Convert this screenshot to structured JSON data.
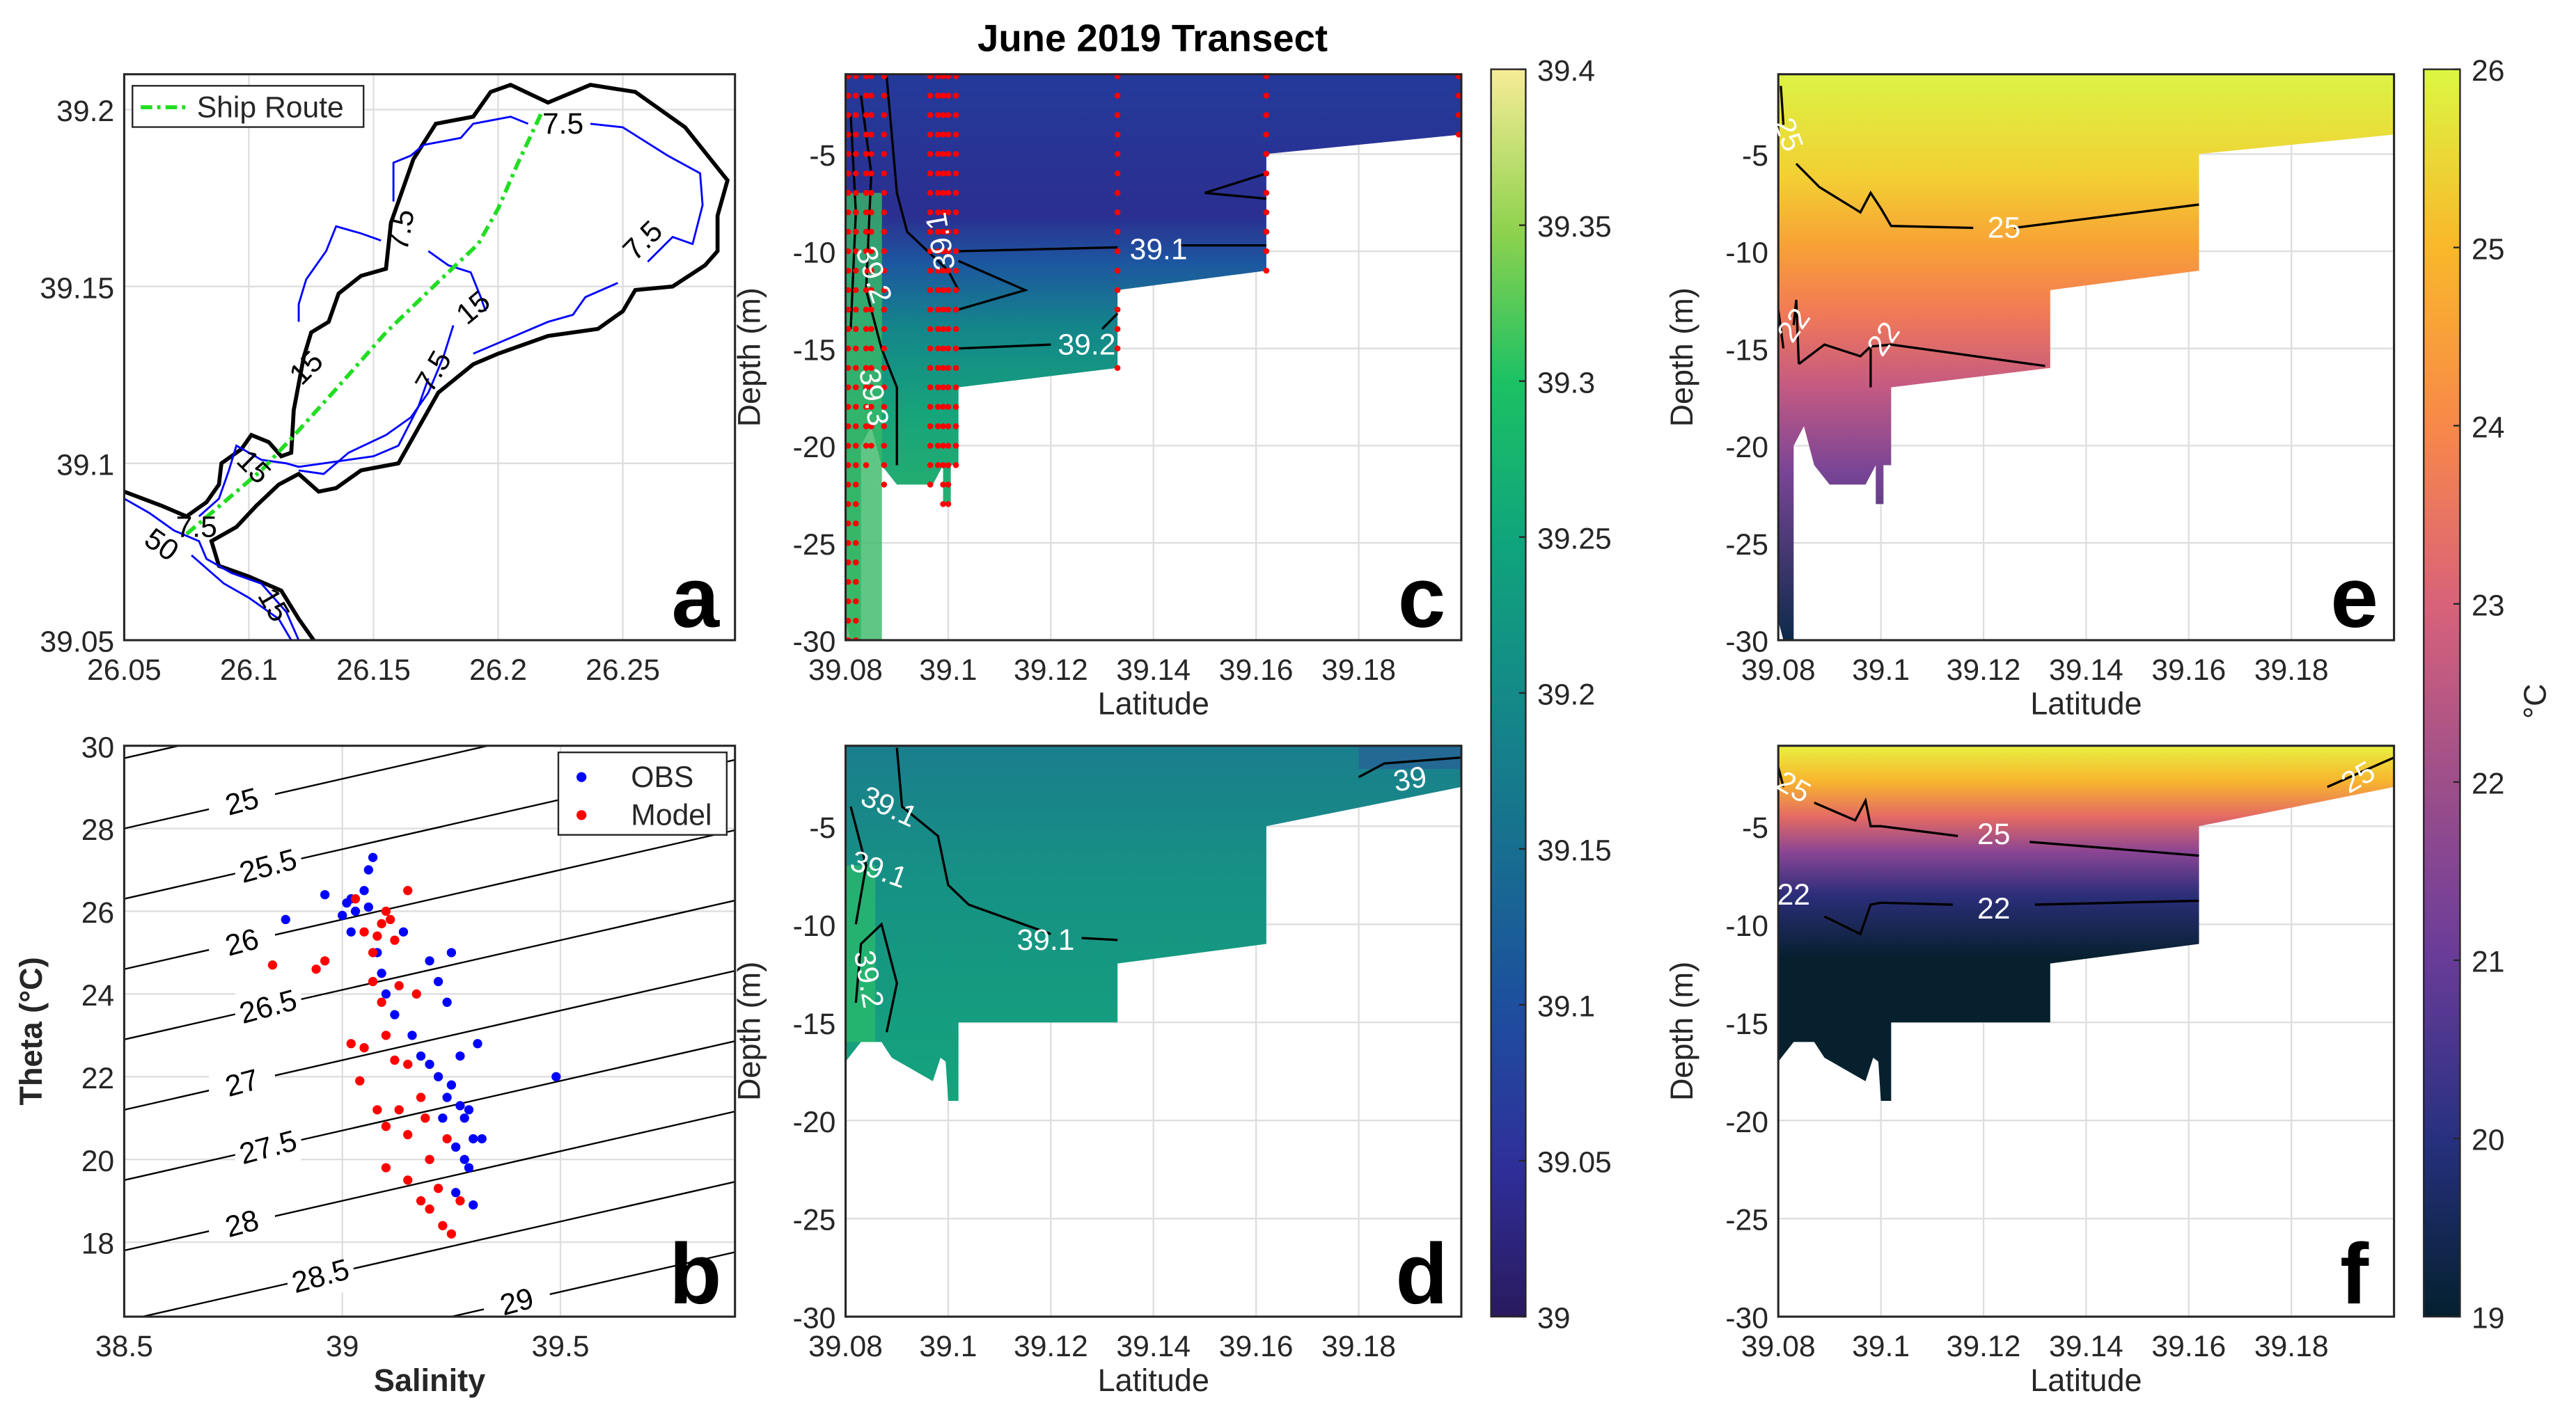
{
  "title": "June 2019 Transect",
  "colors": {
    "obs": "#0000ff",
    "model": "#ff0000",
    "route": "#22dd22",
    "stations": "#ff0000",
    "contour": "#000000",
    "isobath": "#0000ff"
  },
  "chart_data": [
    {
      "id": "a",
      "type": "map",
      "panel_label": "a",
      "xlim": [
        26.05,
        26.295
      ],
      "ylim": [
        39.05,
        39.21
      ],
      "xticks": [
        "26.05",
        "26.1",
        "26.15",
        "26.2",
        "26.25"
      ],
      "xtick_values": [
        26.05,
        26.1,
        26.15,
        26.2,
        26.25
      ],
      "yticks": [
        "39.05",
        "39.1",
        "39.15",
        "39.2"
      ],
      "ytick_values": [
        39.05,
        39.1,
        39.15,
        39.2
      ],
      "legend": [
        "Ship Route"
      ],
      "contour_labels": [
        {
          "text": "7.5",
          "at": [
            26.226,
            39.196
          ],
          "rot": 0
        },
        {
          "text": "7.5",
          "at": [
            26.161,
            39.166
          ],
          "rot": -80
        },
        {
          "text": "7.5",
          "at": [
            26.258,
            39.163
          ],
          "rot": -45
        },
        {
          "text": "15",
          "at": [
            26.19,
            39.144
          ],
          "rot": -40
        },
        {
          "text": "15",
          "at": [
            26.123,
            39.127
          ],
          "rot": -45
        },
        {
          "text": "7.5",
          "at": [
            26.174,
            39.126
          ],
          "rot": -60
        },
        {
          "text": "15",
          "at": [
            26.102,
            39.099
          ],
          "rot": 45
        },
        {
          "text": "50",
          "at": [
            26.065,
            39.077
          ],
          "rot": 35
        },
        {
          "text": "7.5",
          "at": [
            26.079,
            39.082
          ],
          "rot": 0
        },
        {
          "text": "15",
          "at": [
            26.11,
            39.06
          ],
          "rot": 60
        }
      ],
      "route": [
        [
          26.075,
          39.08
        ],
        [
          26.09,
          39.089
        ],
        [
          26.105,
          39.098
        ],
        [
          26.117,
          39.107
        ],
        [
          26.135,
          39.121
        ],
        [
          26.155,
          39.137
        ],
        [
          26.177,
          39.152
        ],
        [
          26.192,
          39.162
        ],
        [
          26.2,
          39.172
        ],
        [
          26.208,
          39.185
        ],
        [
          26.218,
          39.2
        ]
      ]
    },
    {
      "id": "b",
      "type": "scatter",
      "panel_label": "b",
      "xlabel": "Salinity",
      "ylabel": "Theta (°C)",
      "xlim": [
        38.5,
        39.9
      ],
      "ylim": [
        16.2,
        30
      ],
      "xticks": [
        "38.5",
        "39",
        "39.5"
      ],
      "xtick_values": [
        38.5,
        39,
        39.5
      ],
      "yticks": [
        "18",
        "20",
        "22",
        "24",
        "26",
        "28",
        "30"
      ],
      "ytick_values": [
        18,
        20,
        22,
        24,
        26,
        28,
        30
      ],
      "isopycnals": [
        24.5,
        25,
        25.5,
        26,
        26.5,
        27,
        27.5,
        28,
        28.5,
        29,
        29.5
      ],
      "isopycnal_labels": [
        "25",
        "25.5",
        "26",
        "26.5",
        "27",
        "27.5",
        "28",
        "28.5",
        "29"
      ],
      "legend": [
        "OBS",
        "Model"
      ],
      "series": [
        {
          "name": "OBS",
          "points": [
            [
              38.87,
              25.8
            ],
            [
              38.96,
              26.4
            ],
            [
              39.0,
              25.9
            ],
            [
              39.01,
              26.2
            ],
            [
              39.02,
              25.5
            ],
            [
              39.03,
              26.0
            ],
            [
              39.05,
              26.5
            ],
            [
              39.06,
              27.0
            ],
            [
              39.07,
              27.3
            ],
            [
              39.08,
              25.0
            ],
            [
              39.09,
              24.5
            ],
            [
              39.1,
              24.0
            ],
            [
              39.12,
              23.5
            ],
            [
              39.14,
              25.5
            ],
            [
              39.16,
              23.0
            ],
            [
              39.18,
              22.5
            ],
            [
              39.2,
              24.8
            ],
            [
              39.22,
              24.3
            ],
            [
              39.24,
              23.8
            ],
            [
              39.22,
              22.0
            ],
            [
              39.25,
              21.8
            ],
            [
              39.27,
              21.3
            ],
            [
              39.28,
              21.0
            ],
            [
              39.3,
              20.5
            ],
            [
              39.32,
              20.5
            ],
            [
              39.29,
              19.8
            ],
            [
              39.3,
              18.9
            ],
            [
              39.25,
              25.0
            ],
            [
              39.27,
              22.5
            ],
            [
              39.31,
              22.8
            ],
            [
              39.49,
              22.0
            ],
            [
              39.26,
              19.2
            ],
            [
              39.28,
              20.0
            ],
            [
              39.23,
              21.0
            ],
            [
              39.2,
              22.3
            ],
            [
              39.06,
              26.1
            ],
            [
              39.02,
              26.3
            ],
            [
              39.24,
              21.5
            ],
            [
              39.29,
              21.2
            ],
            [
              39.26,
              20.3
            ]
          ]
        },
        {
          "name": "Model",
          "points": [
            [
              38.84,
              24.7
            ],
            [
              38.94,
              24.6
            ],
            [
              38.96,
              24.8
            ],
            [
              39.03,
              26.3
            ],
            [
              39.05,
              25.5
            ],
            [
              39.07,
              25.0
            ],
            [
              39.09,
              25.7
            ],
            [
              39.1,
              26.0
            ],
            [
              39.12,
              25.3
            ],
            [
              39.15,
              26.5
            ],
            [
              39.07,
              24.3
            ],
            [
              39.09,
              23.8
            ],
            [
              39.02,
              22.8
            ],
            [
              39.05,
              22.7
            ],
            [
              39.04,
              21.9
            ],
            [
              39.1,
              23.0
            ],
            [
              39.12,
              22.4
            ],
            [
              39.15,
              22.3
            ],
            [
              39.18,
              21.5
            ],
            [
              39.13,
              21.2
            ],
            [
              39.08,
              21.2
            ],
            [
              39.1,
              20.8
            ],
            [
              39.15,
              20.6
            ],
            [
              39.19,
              21.0
            ],
            [
              39.1,
              19.8
            ],
            [
              39.15,
              19.5
            ],
            [
              39.18,
              19.0
            ],
            [
              39.2,
              18.8
            ],
            [
              39.22,
              19.3
            ],
            [
              39.23,
              18.4
            ],
            [
              39.25,
              18.2
            ],
            [
              39.24,
              20.5
            ],
            [
              39.2,
              20.0
            ],
            [
              39.27,
              19.0
            ],
            [
              39.13,
              24.2
            ],
            [
              39.17,
              24.0
            ],
            [
              39.08,
              25.4
            ],
            [
              39.11,
              25.8
            ]
          ]
        }
      ]
    },
    {
      "id": "c",
      "type": "heatmap",
      "panel_label": "c",
      "variable": "salinity",
      "source": "observations",
      "xlabel": "Latitude",
      "ylabel": "Depth (m)",
      "xlim": [
        39.08,
        39.2
      ],
      "ylim": [
        -30,
        -0.9
      ],
      "xticks": [
        "39.08",
        "39.1",
        "39.12",
        "39.14",
        "39.16",
        "39.18"
      ],
      "xtick_values": [
        39.08,
        39.1,
        39.12,
        39.14,
        39.16,
        39.18
      ],
      "yticks": [
        "-30",
        "-25",
        "-20",
        "-15",
        "-10",
        "-5"
      ],
      "ytick_values": [
        -30,
        -25,
        -20,
        -15,
        -10,
        -5
      ],
      "stations": [
        [
          39.0805,
          -30
        ],
        [
          39.082,
          -30
        ],
        [
          39.084,
          -21
        ],
        [
          39.085,
          -20
        ],
        [
          39.0875,
          -22
        ],
        [
          39.0965,
          -22
        ],
        [
          39.098,
          -21
        ],
        [
          39.099,
          -23
        ],
        [
          39.1,
          -23
        ],
        [
          39.1015,
          -21
        ],
        [
          39.133,
          -16
        ],
        [
          39.162,
          -11
        ],
        [
          39.1995,
          -4
        ]
      ],
      "contour_labels": [
        {
          "text": "39.1",
          "at": [
            39.141,
            -9.9
          ],
          "rot": 0
        },
        {
          "text": "39.2",
          "at": [
            39.127,
            -14.8
          ],
          "rot": 0
        },
        {
          "text": "39.2",
          "at": [
            39.0855,
            -11.2
          ],
          "rot": 72
        },
        {
          "text": "39.1",
          "at": [
            39.0985,
            -9.5
          ],
          "rot": -100
        },
        {
          "text": "39.3",
          "at": [
            39.0855,
            -17.5
          ],
          "rot": 80
        }
      ]
    },
    {
      "id": "d",
      "type": "heatmap",
      "panel_label": "d",
      "variable": "salinity",
      "source": "model",
      "xlabel": "Latitude",
      "ylabel": "Depth (m)",
      "xlim": [
        39.08,
        39.2
      ],
      "ylim": [
        -30,
        -0.9
      ],
      "xticks": [
        "39.08",
        "39.1",
        "39.12",
        "39.14",
        "39.16",
        "39.18"
      ],
      "xtick_values": [
        39.08,
        39.1,
        39.12,
        39.14,
        39.16,
        39.18
      ],
      "yticks": [
        "-30",
        "-25",
        "-20",
        "-15",
        "-10",
        "-5"
      ],
      "ytick_values": [
        -30,
        -25,
        -20,
        -15,
        -10,
        -5
      ],
      "contour_labels": [
        {
          "text": "39.1",
          "at": [
            39.0885,
            -4
          ],
          "rot": 25
        },
        {
          "text": "39.1",
          "at": [
            39.0865,
            -7.2
          ],
          "rot": 20
        },
        {
          "text": "39.1",
          "at": [
            39.119,
            -10.8
          ],
          "rot": 0
        },
        {
          "text": "39.2",
          "at": [
            39.0845,
            -12.8
          ],
          "rot": 80
        },
        {
          "text": "39",
          "at": [
            39.19,
            -2.6
          ],
          "rot": -10
        }
      ]
    },
    {
      "id": "e",
      "type": "heatmap",
      "panel_label": "e",
      "variable": "temperature",
      "source": "observations",
      "xlabel": "Latitude",
      "ylabel": "Depth (m)",
      "xlim": [
        39.08,
        39.2
      ],
      "ylim": [
        -30,
        -0.9
      ],
      "xticks": [
        "39.08",
        "39.1",
        "39.12",
        "39.14",
        "39.16",
        "39.18"
      ],
      "xtick_values": [
        39.08,
        39.1,
        39.12,
        39.14,
        39.16,
        39.18
      ],
      "yticks": [
        "-30",
        "-25",
        "-20",
        "-15",
        "-10",
        "-5"
      ],
      "ytick_values": [
        -30,
        -25,
        -20,
        -15,
        -10,
        -5
      ],
      "contour_labels": [
        {
          "text": "25",
          "at": [
            39.082,
            -4
          ],
          "rot": 70
        },
        {
          "text": "25",
          "at": [
            39.124,
            -8.8
          ],
          "rot": 0
        },
        {
          "text": "22",
          "at": [
            39.083,
            -13.8
          ],
          "rot": -55
        },
        {
          "text": "22",
          "at": [
            39.1005,
            -14.5
          ],
          "rot": -55
        }
      ]
    },
    {
      "id": "f",
      "type": "heatmap",
      "panel_label": "f",
      "variable": "temperature",
      "source": "model",
      "xlabel": "Latitude",
      "ylabel": "Depth (m)",
      "xlim": [
        39.08,
        39.2
      ],
      "ylim": [
        -30,
        -0.9
      ],
      "xticks": [
        "39.08",
        "39.1",
        "39.12",
        "39.14",
        "39.16",
        "39.18"
      ],
      "xtick_values": [
        39.08,
        39.1,
        39.12,
        39.14,
        39.16,
        39.18
      ],
      "yticks": [
        "-30",
        "-25",
        "-20",
        "-15",
        "-10",
        "-5"
      ],
      "ytick_values": [
        -30,
        -25,
        -20,
        -15,
        -10,
        -5
      ],
      "contour_labels": [
        {
          "text": "25",
          "at": [
            39.083,
            -3
          ],
          "rot": 30
        },
        {
          "text": "25",
          "at": [
            39.122,
            -5.4
          ],
          "rot": 0
        },
        {
          "text": "25",
          "at": [
            39.193,
            -2.5
          ],
          "rot": -30
        },
        {
          "text": "22",
          "at": [
            39.083,
            -8.5
          ],
          "rot": 0
        },
        {
          "text": "22",
          "at": [
            39.122,
            -9.2
          ],
          "rot": 0
        }
      ]
    },
    {
      "id": "cb1",
      "type": "colorbar",
      "label": "",
      "range": [
        39,
        39.4
      ],
      "ticks": [
        "39",
        "39.05",
        "39.1",
        "39.15",
        "39.2",
        "39.25",
        "39.3",
        "39.35",
        "39.4"
      ],
      "tick_values": [
        39,
        39.05,
        39.1,
        39.15,
        39.2,
        39.25,
        39.3,
        39.35,
        39.4
      ]
    },
    {
      "id": "cb2",
      "type": "colorbar",
      "label": "°C",
      "range": [
        19,
        26
      ],
      "ticks": [
        "19",
        "20",
        "21",
        "22",
        "23",
        "24",
        "25",
        "26"
      ],
      "tick_values": [
        19,
        20,
        21,
        22,
        23,
        24,
        25,
        26
      ]
    }
  ]
}
